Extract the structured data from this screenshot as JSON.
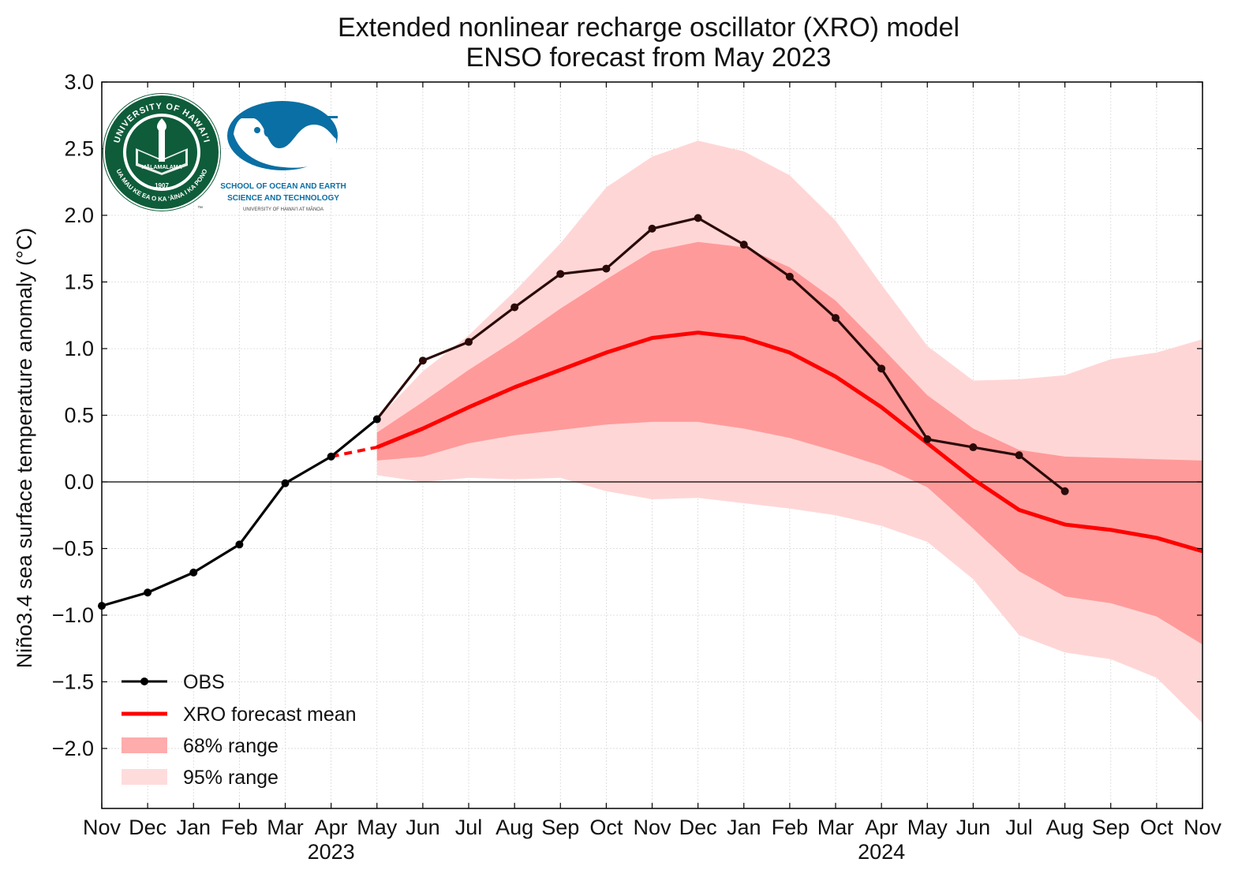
{
  "chart_data": {
    "type": "line",
    "title": "Extended nonlinear recharge oscillator (XRO) model",
    "subtitle": "ENSO forecast from May 2023",
    "ylabel": "Niño3.4 sea surface temperature anomaly (°C)",
    "xlabel": "",
    "ylim": [
      -2.45,
      3.0
    ],
    "yticks": [
      "3.0",
      "2.5",
      "2.0",
      "1.5",
      "1.0",
      "0.5",
      "0.0",
      "−0.5",
      "−1.0",
      "−1.5",
      "−2.0"
    ],
    "ytick_values": [
      3.0,
      2.5,
      2.0,
      1.5,
      1.0,
      0.5,
      0.0,
      -0.5,
      -1.0,
      -1.5,
      -2.0
    ],
    "x_labels": [
      "Nov",
      "Dec",
      "Jan",
      "Feb",
      "Mar",
      "Apr",
      "May",
      "Jun",
      "Jul",
      "Aug",
      "Sep",
      "Oct",
      "Nov",
      "Dec",
      "Jan",
      "Feb",
      "Mar",
      "Apr",
      "May",
      "Jun",
      "Jul",
      "Aug",
      "Sep",
      "Oct",
      "Nov"
    ],
    "x_dates": [
      "2022-11",
      "2022-12",
      "2023-01",
      "2023-02",
      "2023-03",
      "2023-04",
      "2023-05",
      "2023-06",
      "2023-07",
      "2023-08",
      "2023-09",
      "2023-10",
      "2023-11",
      "2023-12",
      "2024-01",
      "2024-02",
      "2024-03",
      "2024-04",
      "2024-05",
      "2024-06",
      "2024-07",
      "2024-08",
      "2024-09",
      "2024-10",
      "2024-11"
    ],
    "year_labels": [
      {
        "label": "2023",
        "date": "2023-04"
      },
      {
        "label": "2024",
        "date": "2024-04"
      }
    ],
    "grid": true,
    "zero_line": true,
    "legend_position": "lower-left",
    "colors": {
      "obs_before": "#000000",
      "obs_after": "#2a0a08",
      "mean": "#ff0000",
      "range68": "#ff9a9a",
      "range95": "#ffd6d6"
    },
    "series": [
      {
        "name": "OBS",
        "x": [
          "2022-11",
          "2022-12",
          "2023-01",
          "2023-02",
          "2023-03",
          "2023-04",
          "2023-05",
          "2023-06",
          "2023-07",
          "2023-08",
          "2023-09",
          "2023-10",
          "2023-11",
          "2023-12",
          "2024-01",
          "2024-02",
          "2024-03",
          "2024-04",
          "2024-05",
          "2024-06",
          "2024-07",
          "2024-08"
        ],
        "values": [
          -0.93,
          -0.83,
          -0.68,
          -0.47,
          -0.01,
          0.19,
          0.47,
          0.91,
          1.05,
          1.31,
          1.56,
          1.6,
          1.9,
          1.98,
          1.78,
          1.54,
          1.23,
          0.85,
          0.32,
          0.26,
          0.2,
          -0.07
        ]
      },
      {
        "name": "XRO forecast mean",
        "x": [
          "2023-04",
          "2023-05",
          "2023-06",
          "2023-07",
          "2023-08",
          "2023-09",
          "2023-10",
          "2023-11",
          "2023-12",
          "2024-01",
          "2024-02",
          "2024-03",
          "2024-04",
          "2024-05",
          "2024-06",
          "2024-07",
          "2024-08",
          "2024-09",
          "2024-10",
          "2024-11"
        ],
        "values": [
          0.19,
          0.26,
          0.4,
          0.56,
          0.71,
          0.84,
          0.97,
          1.08,
          1.12,
          1.08,
          0.97,
          0.79,
          0.56,
          0.29,
          0.02,
          -0.21,
          -0.32,
          -0.36,
          -0.42,
          -0.52
        ]
      },
      {
        "name": "68% range",
        "x": [
          "2023-05",
          "2023-06",
          "2023-07",
          "2023-08",
          "2023-09",
          "2023-10",
          "2023-11",
          "2023-12",
          "2024-01",
          "2024-02",
          "2024-03",
          "2024-04",
          "2024-05",
          "2024-06",
          "2024-07",
          "2024-08",
          "2024-09",
          "2024-10",
          "2024-11"
        ],
        "lower": [
          0.16,
          0.19,
          0.29,
          0.35,
          0.39,
          0.43,
          0.45,
          0.45,
          0.4,
          0.33,
          0.23,
          0.12,
          -0.04,
          -0.35,
          -0.67,
          -0.86,
          -0.91,
          -1.01,
          -1.22
        ],
        "upper": [
          0.37,
          0.6,
          0.84,
          1.06,
          1.3,
          1.52,
          1.73,
          1.8,
          1.76,
          1.61,
          1.36,
          1.01,
          0.65,
          0.4,
          0.24,
          0.19,
          0.18,
          0.17,
          0.16
        ]
      },
      {
        "name": "95% range",
        "x": [
          "2023-05",
          "2023-06",
          "2023-07",
          "2023-08",
          "2023-09",
          "2023-10",
          "2023-11",
          "2023-12",
          "2024-01",
          "2024-02",
          "2024-03",
          "2024-04",
          "2024-05",
          "2024-06",
          "2024-07",
          "2024-08",
          "2024-09",
          "2024-10",
          "2024-11"
        ],
        "lower": [
          0.05,
          0.0,
          0.03,
          0.02,
          0.03,
          -0.07,
          -0.13,
          -0.12,
          -0.16,
          -0.2,
          -0.25,
          -0.33,
          -0.45,
          -0.73,
          -1.15,
          -1.28,
          -1.33,
          -1.47,
          -1.81
        ],
        "upper": [
          0.47,
          0.83,
          1.1,
          1.43,
          1.79,
          2.21,
          2.44,
          2.56,
          2.48,
          2.3,
          1.96,
          1.48,
          1.02,
          0.76,
          0.77,
          0.8,
          0.92,
          0.97,
          1.07
        ]
      }
    ]
  },
  "logos": {
    "uh_seal": {
      "icon": "university-of-hawaii-seal-icon",
      "text_top": "UNIVERSITY OF HAWAI'I",
      "text_bottom": "UA MAU KE EA O KA ʻĀINA I KA PONO",
      "motto": "MĀLAMALAMA",
      "year": "1907",
      "mark": "™"
    },
    "soest": {
      "icon": "soest-wave-logo-icon",
      "line1": "SCHOOL OF OCEAN AND EARTH",
      "line2": "SCIENCE AND TECHNOLOGY",
      "line3": "UNIVERSITY OF HAWAIʻI AT MĀNOA"
    }
  }
}
